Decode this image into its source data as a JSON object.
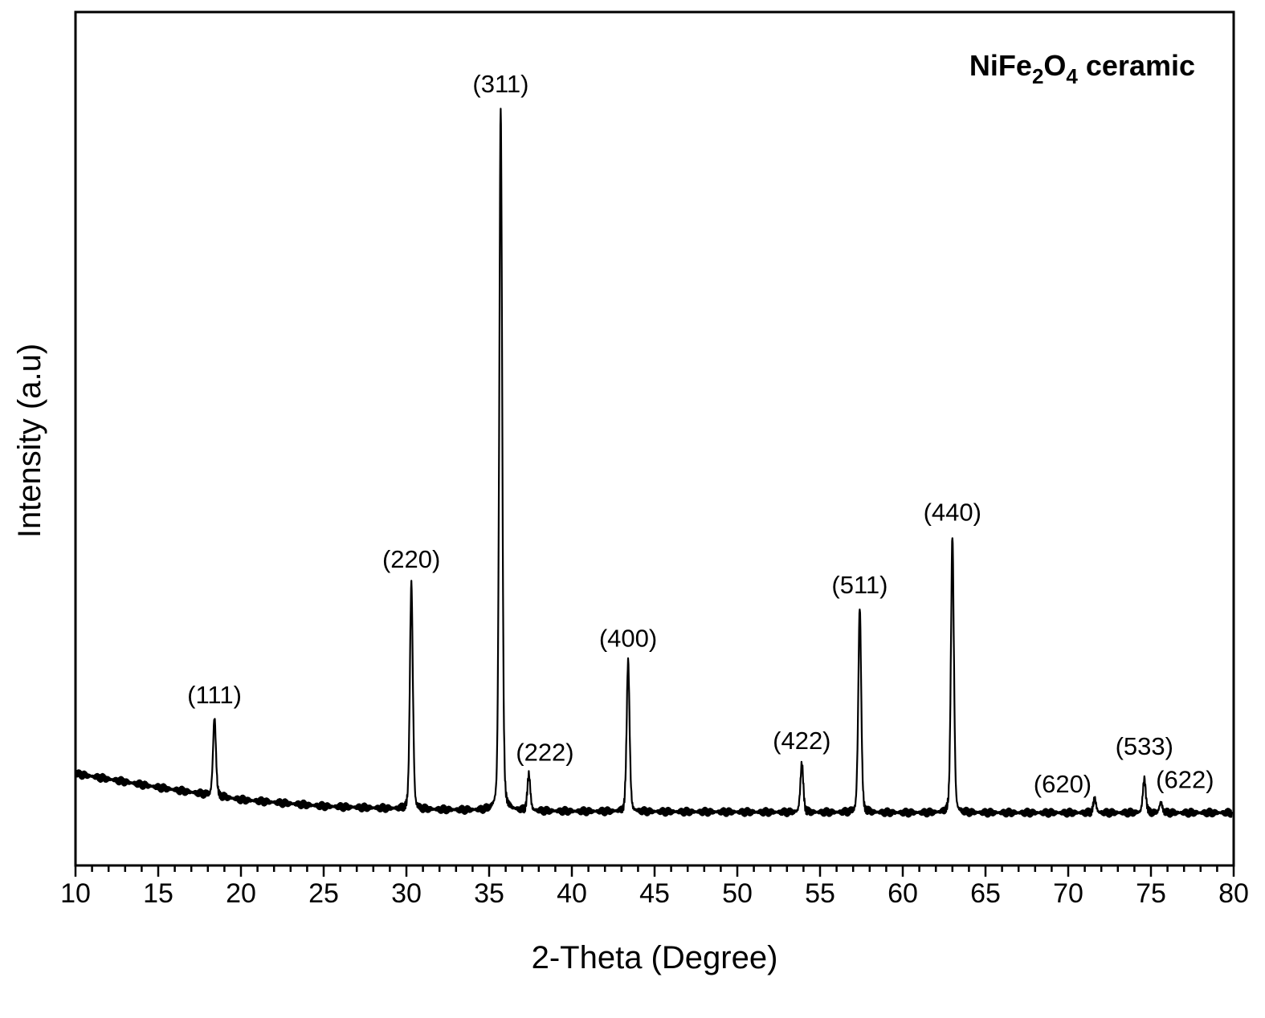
{
  "chart_data": {
    "type": "line",
    "title_parts": [
      {
        "text": "NiFe",
        "sub": false
      },
      {
        "text": "2",
        "sub": true
      },
      {
        "text": "O",
        "sub": false
      },
      {
        "text": "4",
        "sub": true
      },
      {
        "text": " ceramic",
        "sub": false
      }
    ],
    "xlabel": "2-Theta (Degree)",
    "ylabel": "Intensity (a.u)",
    "xlim": [
      10,
      80
    ],
    "ylim": [
      0,
      100
    ],
    "x_ticks": [
      10,
      15,
      20,
      25,
      30,
      35,
      40,
      45,
      50,
      55,
      60,
      65,
      70,
      75,
      80
    ],
    "y_ticks_shown": false,
    "grid": false,
    "background": {
      "points": [
        [
          10,
          7.8
        ],
        [
          15,
          5.9
        ],
        [
          20,
          4.2
        ],
        [
          25,
          3.3
        ],
        [
          30,
          2.9
        ],
        [
          35,
          2.7
        ],
        [
          40,
          2.6
        ],
        [
          50,
          2.5
        ],
        [
          60,
          2.4
        ],
        [
          70,
          2.4
        ],
        [
          80,
          2.4
        ]
      ]
    },
    "peaks": [
      {
        "label": "(111)",
        "x": 18.4,
        "y": 15.5
      },
      {
        "label": "(220)",
        "x": 30.3,
        "y": 34.2
      },
      {
        "label": "(311)",
        "x": 35.7,
        "y": 100
      },
      {
        "label": "(222)",
        "x": 37.4,
        "y": 7.6
      },
      {
        "label": "(400)",
        "x": 43.4,
        "y": 23.3
      },
      {
        "label": "(422)",
        "x": 53.9,
        "y": 9.2
      },
      {
        "label": "(511)",
        "x": 57.4,
        "y": 30.7
      },
      {
        "label": "(440)",
        "x": 63.0,
        "y": 40.7
      },
      {
        "label": "(620)",
        "x": 71.6,
        "y": 4.3
      },
      {
        "label": "(533)",
        "x": 74.6,
        "y": 7.1
      },
      {
        "label": "(622)",
        "x": 75.6,
        "y": 3.8
      }
    ],
    "series_color": "#000000"
  }
}
